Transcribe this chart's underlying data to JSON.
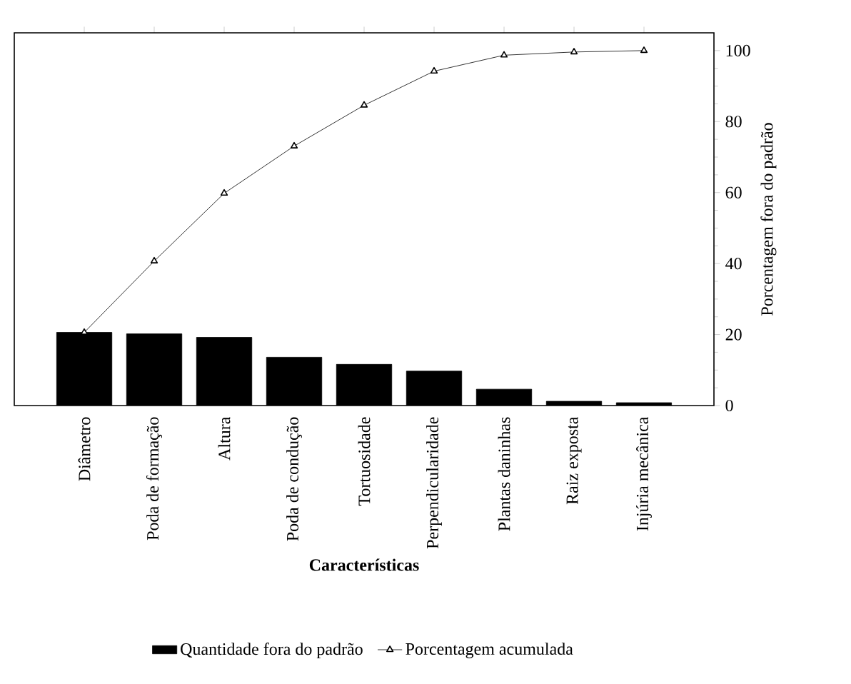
{
  "chart_data": {
    "type": "bar",
    "xlabel": "**Características**",
    "y2label": "Porcentagem fora do padrão",
    "categories": [
      "Diâmetro",
      "Poda de formação",
      "Altura",
      "Poda de condução",
      "Tortuosidade",
      "Perpendicularidade",
      "Plantas daninhas",
      "Raiz exposta",
      "Injúria mecânica"
    ],
    "series": [
      {
        "name": "Quantidade fora do padrão",
        "axis": "y2",
        "color": "#000000",
        "values": [
          20.6,
          20.2,
          19.2,
          13.6,
          11.6,
          9.7,
          4.6,
          1.2,
          0.8
        ]
      },
      {
        "name": "Porcentagem acumulada",
        "type": "line",
        "axis": "y2",
        "color": "#000000",
        "marker": "triangle",
        "line_style": "solid",
        "values": [
          20.6,
          40.7,
          59.8,
          73.1,
          84.6,
          94.2,
          98.7,
          99.6,
          100
        ]
      }
    ],
    "y2lim": [
      0,
      105
    ],
    "y2ticks": [
      0,
      20,
      40,
      60,
      80,
      100
    ],
    "grid": false,
    "legend": "bottom"
  }
}
